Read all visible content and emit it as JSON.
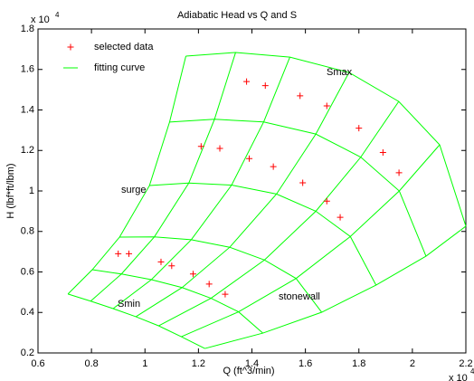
{
  "chart_data": {
    "type": "scatter",
    "title": "Adiabatic Head vs Q and S",
    "x_label": "Q (ft^3/min)",
    "y_label": "H (lbf*ft/lbm)",
    "x_scale_base": "x 10",
    "x_scale_exponent": "4",
    "y_scale_base": "x 10",
    "y_scale_exponent": "4",
    "xlim": [
      0.6,
      2.2
    ],
    "ylim": [
      0.2,
      1.8
    ],
    "xticks": [
      0.6,
      0.8,
      1,
      1.2,
      1.4,
      1.6,
      1.8,
      2,
      2.2
    ],
    "yticks": [
      0.2,
      0.4,
      0.6,
      0.8,
      1,
      1.2,
      1.4,
      1.6,
      1.8
    ],
    "legend": "upper left",
    "annotations": [
      "Smax",
      "surge",
      "Smin",
      "stonewall"
    ],
    "series": [
      {
        "name": "selected data",
        "type": "scatter",
        "color": "#ff0000",
        "x": [
          0.9,
          0.94,
          1.06,
          1.1,
          1.18,
          1.24,
          1.3,
          1.21,
          1.28,
          1.38,
          1.45,
          1.39,
          1.58,
          1.48,
          1.59,
          1.68,
          1.73,
          1.68,
          1.8,
          1.89,
          1.95
        ],
        "y": [
          0.69,
          0.69,
          0.65,
          0.63,
          0.59,
          0.54,
          0.49,
          1.22,
          1.21,
          1.54,
          1.52,
          1.16,
          1.47,
          1.12,
          1.04,
          0.95,
          0.87,
          1.42,
          1.31,
          1.19,
          1.09
        ]
      },
      {
        "name": "fitting curve",
        "type": "mesh",
        "color": "#00ff00",
        "x": [
          [
            0.712,
            0.797,
            0.881,
            0.966,
            1.051,
            1.136,
            1.224
          ],
          [
            0.803,
            0.912,
            1.024,
            1.139,
            1.247,
            1.35,
            1.441
          ],
          [
            0.905,
            1.035,
            1.173,
            1.317,
            1.447,
            1.565,
            1.661
          ],
          [
            1.017,
            1.164,
            1.324,
            1.492,
            1.639,
            1.768,
            1.864
          ],
          [
            1.092,
            1.26,
            1.444,
            1.639,
            1.807,
            1.951,
            2.051
          ],
          [
            1.153,
            1.339,
            1.542,
            1.763,
            1.949,
            2.102,
            2.2
          ]
        ],
        "y": [
          [
            0.491,
            0.456,
            0.419,
            0.379,
            0.334,
            0.28,
            0.222
          ],
          [
            0.611,
            0.59,
            0.562,
            0.523,
            0.47,
            0.403,
            0.298
          ],
          [
            0.772,
            0.773,
            0.759,
            0.722,
            0.659,
            0.568,
            0.401
          ],
          [
            1.027,
            1.039,
            1.029,
            0.985,
            0.9,
            0.775,
            0.535
          ],
          [
            1.34,
            1.354,
            1.341,
            1.281,
            1.167,
            1.0,
            0.678
          ],
          [
            1.666,
            1.684,
            1.661,
            1.585,
            1.442,
            1.228,
            0.826
          ]
        ]
      }
    ]
  }
}
